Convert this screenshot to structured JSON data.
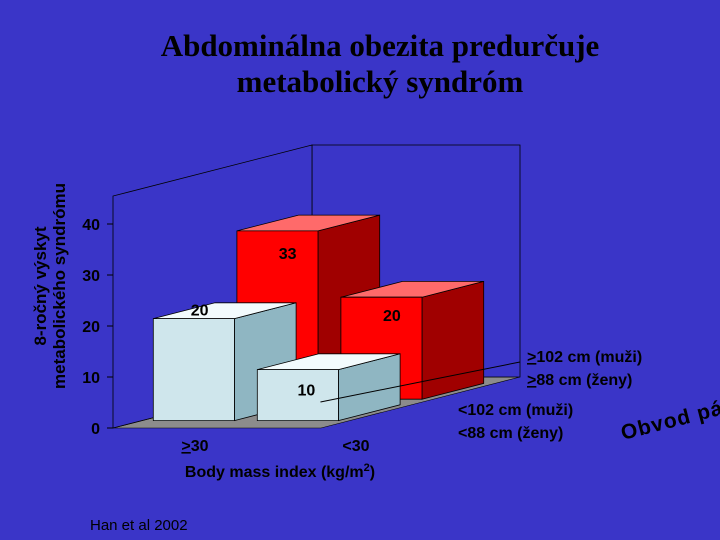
{
  "title_lines": [
    "Abdominálna obezita predurčuje",
    "metabolický syndróm"
  ],
  "source": "Han et al 2002",
  "colors": {
    "background": "#3a35c8",
    "high_waist_bars": "#ff0000",
    "low_waist_bars": "#cfe6ec",
    "floor": "#8c8c8c",
    "wall": "#3a35c8"
  },
  "chart_data": {
    "type": "bar",
    "subtype": "3d-grouped-bar",
    "ylabel_lines": [
      "8-ročný výskyt",
      "metabolického syndrómu"
    ],
    "ylim": [
      0,
      40
    ],
    "yticks": [
      0,
      10,
      20,
      30,
      40
    ],
    "xlabel": "Body mass index (kg/m²)",
    "xlabel_parts": {
      "base": "Body mass index (kg/m",
      "sup": "2",
      "end": ")"
    },
    "categories": [
      ">30",
      "<30"
    ],
    "category_parts": [
      {
        "prefix": "",
        "underlined": ">",
        "rest": "30"
      },
      {
        "prefix": "",
        "underlined": "",
        "rest": "<30"
      }
    ],
    "depth_axis_label": "Obvod pása",
    "depth_axis_letters": [
      "O",
      "b",
      "v",
      "o",
      "d",
      " ",
      "p",
      "á",
      "s",
      "a"
    ],
    "series": [
      {
        "name": ">102 cm (muži) / >88 cm (ženy)",
        "legend_lines": [
          {
            "underlined": ">",
            "rest": "102 cm (muži)"
          },
          {
            "underlined": ">",
            "rest": "88 cm (ženy)"
          }
        ],
        "values": [
          33,
          20
        ],
        "labels": [
          "33",
          "20"
        ]
      },
      {
        "name": "<102 cm (muži) / <88 cm (ženy)",
        "legend_lines": [
          {
            "underlined": "",
            "rest": "<102 cm (muži)"
          },
          {
            "underlined": "",
            "rest": "<88 cm (ženy)"
          }
        ],
        "values": [
          20,
          10
        ],
        "labels": [
          "20",
          "10"
        ]
      }
    ]
  }
}
